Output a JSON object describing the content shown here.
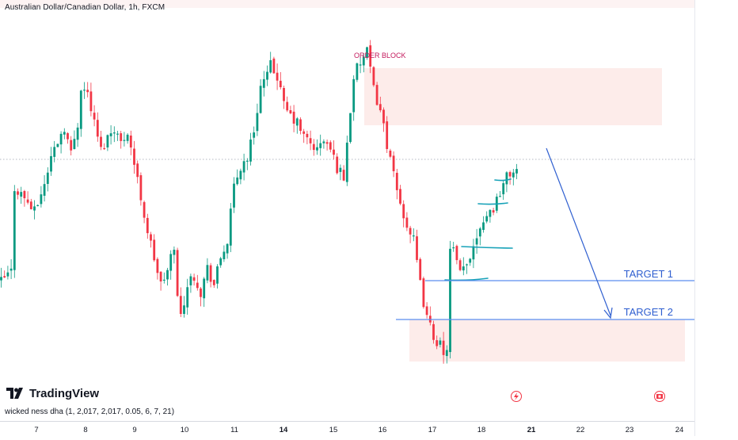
{
  "header": {
    "title": "Australian Dollar/Canadian Dollar, 1h, FXCM"
  },
  "indicator": {
    "label": "wicked ness dha (1, 2,017, 2,017, 0.05, 6, 7, 21)"
  },
  "branding": {
    "logo_text": "TradingView",
    "logo_color": "#131722"
  },
  "annotations": {
    "order_block_label": "ORDER BLOCK",
    "target1_label": "TARGET 1",
    "target2_label": "TARGET 2"
  },
  "colors": {
    "up": "#089981",
    "down": "#f23645",
    "order_block_zone": "#fdecea",
    "target_line": "#5b8def",
    "liquidity_line": "#17a2b8",
    "arrow": "#2f5fd0",
    "order_block_text": "#c2185b"
  },
  "icons": [
    "lightning-icon",
    "flag-icon"
  ],
  "chart_data": {
    "type": "candlestick",
    "title": "Australian Dollar/Canadian Dollar, 1h, FXCM",
    "x_tick_labels": [
      "7",
      "8",
      "9",
      "10",
      "11",
      "14",
      "15",
      "16",
      "17",
      "18",
      "21",
      "22",
      "23",
      "24"
    ],
    "y_axis": "hidden (no price labels shown)",
    "close_path_index_values": [
      {
        "pos": 0,
        "close": 115
      },
      {
        "pos": 3,
        "close": 130
      },
      {
        "pos": 4,
        "close": 255
      },
      {
        "pos": 7,
        "close": 240
      },
      {
        "pos": 10,
        "close": 218
      },
      {
        "pos": 13,
        "close": 260
      },
      {
        "pos": 15,
        "close": 300
      },
      {
        "pos": 17,
        "close": 325
      },
      {
        "pos": 19,
        "close": 345
      },
      {
        "pos": 21,
        "close": 305
      },
      {
        "pos": 23,
        "close": 350
      },
      {
        "pos": 24,
        "close": 405
      },
      {
        "pos": 26,
        "close": 395
      },
      {
        "pos": 28,
        "close": 350
      },
      {
        "pos": 30,
        "close": 310
      },
      {
        "pos": 32,
        "close": 330
      },
      {
        "pos": 34,
        "close": 345
      },
      {
        "pos": 36,
        "close": 320
      },
      {
        "pos": 38,
        "close": 340
      },
      {
        "pos": 40,
        "close": 290
      },
      {
        "pos": 42,
        "close": 240
      },
      {
        "pos": 44,
        "close": 190
      },
      {
        "pos": 46,
        "close": 150
      },
      {
        "pos": 48,
        "close": 110
      },
      {
        "pos": 50,
        "close": 130
      },
      {
        "pos": 52,
        "close": 170
      },
      {
        "pos": 53,
        "close": 90
      },
      {
        "pos": 54,
        "close": 65
      },
      {
        "pos": 56,
        "close": 110
      },
      {
        "pos": 58,
        "close": 125
      },
      {
        "pos": 60,
        "close": 100
      },
      {
        "pos": 62,
        "close": 135
      },
      {
        "pos": 64,
        "close": 110
      },
      {
        "pos": 66,
        "close": 150
      },
      {
        "pos": 68,
        "close": 175
      },
      {
        "pos": 70,
        "close": 255
      },
      {
        "pos": 72,
        "close": 285
      },
      {
        "pos": 74,
        "close": 300
      },
      {
        "pos": 76,
        "close": 340
      },
      {
        "pos": 78,
        "close": 405
      },
      {
        "pos": 80,
        "close": 420
      },
      {
        "pos": 81,
        "close": 435
      },
      {
        "pos": 83,
        "close": 420
      },
      {
        "pos": 85,
        "close": 375
      },
      {
        "pos": 87,
        "close": 360
      },
      {
        "pos": 89,
        "close": 350
      },
      {
        "pos": 91,
        "close": 330
      },
      {
        "pos": 93,
        "close": 320
      },
      {
        "pos": 95,
        "close": 310
      },
      {
        "pos": 97,
        "close": 325
      },
      {
        "pos": 99,
        "close": 310
      },
      {
        "pos": 101,
        "close": 285
      },
      {
        "pos": 103,
        "close": 270
      },
      {
        "pos": 106,
        "close": 420
      },
      {
        "pos": 108,
        "close": 440
      },
      {
        "pos": 110,
        "close": 455
      },
      {
        "pos": 112,
        "close": 400
      },
      {
        "pos": 114,
        "close": 370
      },
      {
        "pos": 116,
        "close": 320
      },
      {
        "pos": 118,
        "close": 270
      },
      {
        "pos": 120,
        "close": 230
      },
      {
        "pos": 122,
        "close": 200
      },
      {
        "pos": 124,
        "close": 175
      },
      {
        "pos": 126,
        "close": 110
      },
      {
        "pos": 128,
        "close": 60
      },
      {
        "pos": 130,
        "close": 35
      },
      {
        "pos": 132,
        "close": 20
      },
      {
        "pos": 133,
        "close": 0
      },
      {
        "pos": 134,
        "close": 20
      },
      {
        "pos": 135,
        "close": 160
      },
      {
        "pos": 136,
        "close": 160
      },
      {
        "pos": 138,
        "close": 125
      },
      {
        "pos": 140,
        "close": 140
      },
      {
        "pos": 142,
        "close": 170
      },
      {
        "pos": 144,
        "close": 200
      },
      {
        "pos": 146,
        "close": 215
      },
      {
        "pos": 148,
        "close": 225
      },
      {
        "pos": 150,
        "close": 250
      },
      {
        "pos": 152,
        "close": 270
      },
      {
        "pos": 154,
        "close": 280
      },
      {
        "pos": 155,
        "close": 280
      }
    ],
    "annotations": [
      {
        "type": "zone",
        "label": "ORDER BLOCK"
      },
      {
        "type": "horizontal_line",
        "label": "TARGET 1"
      },
      {
        "type": "horizontal_line",
        "label": "TARGET 2"
      },
      {
        "type": "zone",
        "label": ""
      },
      {
        "type": "arrow",
        "label": ""
      }
    ]
  }
}
